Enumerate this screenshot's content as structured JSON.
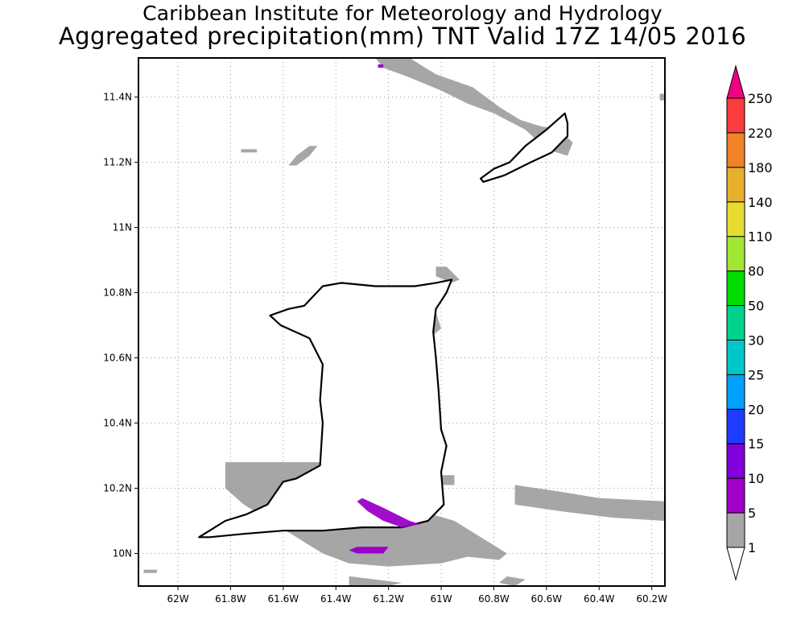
{
  "titles": {
    "line1": "Caribbean Institute for Meteorology and Hydrology",
    "line2": "Aggregated precipitation(mm) TNT Valid 17Z 14/05 2016"
  },
  "map": {
    "lon_range": [
      -62.15,
      -60.15
    ],
    "lat_range": [
      9.9,
      11.52
    ],
    "lon_ticks": [
      {
        "value": -62.0,
        "label": "62W"
      },
      {
        "value": -61.8,
        "label": "61.8W"
      },
      {
        "value": -61.6,
        "label": "61.6W"
      },
      {
        "value": -61.4,
        "label": "61.4W"
      },
      {
        "value": -61.2,
        "label": "61.2W"
      },
      {
        "value": -61.0,
        "label": "61W"
      },
      {
        "value": -60.8,
        "label": "60.8W"
      },
      {
        "value": -60.6,
        "label": "60.6W"
      },
      {
        "value": -60.4,
        "label": "60.4W"
      },
      {
        "value": -60.2,
        "label": "60.2W"
      }
    ],
    "lat_ticks": [
      {
        "value": 10.0,
        "label": "10N"
      },
      {
        "value": 10.2,
        "label": "10.2N"
      },
      {
        "value": 10.4,
        "label": "10.4N"
      },
      {
        "value": 10.6,
        "label": "10.6N"
      },
      {
        "value": 10.8,
        "label": "10.8N"
      },
      {
        "value": 11.0,
        "label": "11N"
      },
      {
        "value": 11.2,
        "label": "11.2N"
      },
      {
        "value": 11.4,
        "label": "11.4N"
      }
    ],
    "gridlines": true,
    "colors": {
      "land_outline": "#000000",
      "precip_1_5": "#a6a6a6",
      "precip_5_10": "#9b00c8"
    },
    "features": {
      "trinidad": [
        [
          -61.92,
          10.05
        ],
        [
          -61.88,
          10.07
        ],
        [
          -61.82,
          10.1
        ],
        [
          -61.74,
          10.12
        ],
        [
          -61.66,
          10.15
        ],
        [
          -61.6,
          10.22
        ],
        [
          -61.55,
          10.23
        ],
        [
          -61.46,
          10.27
        ],
        [
          -61.45,
          10.4
        ],
        [
          -61.46,
          10.47
        ],
        [
          -61.45,
          10.58
        ],
        [
          -61.5,
          10.66
        ],
        [
          -61.61,
          10.7
        ],
        [
          -61.65,
          10.73
        ],
        [
          -61.58,
          10.75
        ],
        [
          -61.52,
          10.76
        ],
        [
          -61.45,
          10.82
        ],
        [
          -61.38,
          10.83
        ],
        [
          -61.25,
          10.82
        ],
        [
          -61.1,
          10.82
        ],
        [
          -61.02,
          10.83
        ],
        [
          -60.96,
          10.84
        ],
        [
          -60.98,
          10.8
        ],
        [
          -61.02,
          10.75
        ],
        [
          -61.03,
          10.68
        ],
        [
          -61.02,
          10.6
        ],
        [
          -61.01,
          10.5
        ],
        [
          -61.0,
          10.38
        ],
        [
          -60.98,
          10.33
        ],
        [
          -61.0,
          10.25
        ],
        [
          -60.99,
          10.15
        ],
        [
          -61.05,
          10.1
        ],
        [
          -61.15,
          10.08
        ],
        [
          -61.3,
          10.08
        ],
        [
          -61.45,
          10.07
        ],
        [
          -61.6,
          10.07
        ],
        [
          -61.75,
          10.06
        ],
        [
          -61.88,
          10.05
        ]
      ],
      "tobago": [
        [
          -60.85,
          11.15
        ],
        [
          -60.8,
          11.18
        ],
        [
          -60.74,
          11.2
        ],
        [
          -60.68,
          11.25
        ],
        [
          -60.6,
          11.3
        ],
        [
          -60.53,
          11.35
        ],
        [
          -60.52,
          11.32
        ],
        [
          -60.52,
          11.28
        ],
        [
          -60.58,
          11.23
        ],
        [
          -60.66,
          11.2
        ],
        [
          -60.76,
          11.16
        ],
        [
          -60.84,
          11.14
        ]
      ],
      "precip_1_5": [
        [
          [
            -61.25,
            11.52
          ],
          [
            -61.12,
            11.52
          ],
          [
            -61.02,
            11.47
          ],
          [
            -60.88,
            11.43
          ],
          [
            -60.78,
            11.37
          ],
          [
            -60.7,
            11.33
          ],
          [
            -60.62,
            11.31
          ],
          [
            -60.55,
            11.3
          ],
          [
            -60.5,
            11.26
          ],
          [
            -60.52,
            11.22
          ],
          [
            -60.6,
            11.24
          ],
          [
            -60.68,
            11.3
          ],
          [
            -60.8,
            11.35
          ],
          [
            -60.9,
            11.38
          ],
          [
            -61.0,
            11.42
          ],
          [
            -61.12,
            11.46
          ],
          [
            -61.22,
            11.49
          ]
        ],
        [
          [
            -61.55,
            11.19
          ],
          [
            -61.5,
            11.22
          ],
          [
            -61.47,
            11.25
          ],
          [
            -61.5,
            11.25
          ],
          [
            -61.55,
            11.22
          ],
          [
            -61.58,
            11.19
          ]
        ],
        [
          [
            -61.76,
            11.24
          ],
          [
            -61.7,
            11.24
          ],
          [
            -61.7,
            11.23
          ],
          [
            -61.76,
            11.23
          ]
        ],
        [
          [
            -61.02,
            10.88
          ],
          [
            -60.98,
            10.88
          ],
          [
            -60.93,
            10.84
          ],
          [
            -60.96,
            10.83
          ],
          [
            -61.02,
            10.85
          ]
        ],
        [
          [
            -61.08,
            10.72
          ],
          [
            -61.02,
            10.74
          ],
          [
            -61.0,
            10.69
          ],
          [
            -61.03,
            10.67
          ],
          [
            -61.08,
            10.69
          ]
        ],
        [
          [
            -61.82,
            10.28
          ],
          [
            -61.6,
            10.28
          ],
          [
            -61.45,
            10.28
          ],
          [
            -61.35,
            10.25
          ],
          [
            -61.25,
            10.2
          ],
          [
            -61.12,
            10.14
          ],
          [
            -60.95,
            10.1
          ],
          [
            -60.85,
            10.05
          ],
          [
            -60.75,
            10.0
          ],
          [
            -60.78,
            9.98
          ],
          [
            -60.9,
            9.99
          ],
          [
            -61.0,
            9.97
          ],
          [
            -61.2,
            9.96
          ],
          [
            -61.35,
            9.97
          ],
          [
            -61.45,
            10.0
          ],
          [
            -61.55,
            10.05
          ],
          [
            -61.65,
            10.1
          ],
          [
            -61.75,
            10.15
          ],
          [
            -61.82,
            10.2
          ]
        ],
        [
          [
            -60.72,
            10.21
          ],
          [
            -60.55,
            10.19
          ],
          [
            -60.4,
            10.17
          ],
          [
            -60.15,
            10.16
          ],
          [
            -60.15,
            10.1
          ],
          [
            -60.35,
            10.11
          ],
          [
            -60.55,
            10.13
          ],
          [
            -60.72,
            10.15
          ]
        ],
        [
          [
            -61.0,
            10.24
          ],
          [
            -60.95,
            10.24
          ],
          [
            -60.95,
            10.21
          ],
          [
            -61.0,
            10.21
          ]
        ],
        [
          [
            -61.35,
            9.93
          ],
          [
            -61.25,
            9.92
          ],
          [
            -61.15,
            9.91
          ],
          [
            -61.2,
            9.9
          ],
          [
            -61.35,
            9.9
          ]
        ],
        [
          [
            -60.75,
            9.93
          ],
          [
            -60.68,
            9.92
          ],
          [
            -60.72,
            9.9
          ],
          [
            -60.78,
            9.91
          ]
        ],
        [
          [
            -62.13,
            9.95
          ],
          [
            -62.08,
            9.95
          ],
          [
            -62.08,
            9.94
          ],
          [
            -62.13,
            9.94
          ]
        ],
        [
          [
            -60.17,
            11.41
          ],
          [
            -60.15,
            11.41
          ],
          [
            -60.15,
            11.39
          ],
          [
            -60.17,
            11.39
          ]
        ]
      ],
      "precip_5_10": [
        [
          [
            -61.3,
            10.17
          ],
          [
            -61.22,
            10.14
          ],
          [
            -61.12,
            10.1
          ],
          [
            -61.08,
            10.09
          ],
          [
            -61.15,
            10.08
          ],
          [
            -61.22,
            10.1
          ],
          [
            -61.28,
            10.13
          ],
          [
            -61.32,
            10.16
          ]
        ],
        [
          [
            -61.32,
            10.02
          ],
          [
            -61.2,
            10.02
          ],
          [
            -61.22,
            10.0
          ],
          [
            -61.32,
            10.0
          ],
          [
            -61.35,
            10.01
          ]
        ],
        [
          [
            -61.24,
            11.5
          ],
          [
            -61.22,
            11.5
          ],
          [
            -61.22,
            11.49
          ],
          [
            -61.24,
            11.49
          ]
        ]
      ]
    }
  },
  "colorbar": {
    "levels": [
      "1",
      "5",
      "10",
      "15",
      "20",
      "25",
      "30",
      "50",
      "80",
      "110",
      "140",
      "180",
      "220",
      "250"
    ],
    "colors": [
      "#a6a6a6",
      "#a000c8",
      "#8200dc",
      "#1e3cff",
      "#00a0ff",
      "#00c8c8",
      "#00d28c",
      "#00dc00",
      "#a0e632",
      "#e6dc32",
      "#e6af2d",
      "#f08228",
      "#fa3c3c",
      "#f00082"
    ],
    "under_color": "#ffffff",
    "over_color": "#f00082"
  }
}
